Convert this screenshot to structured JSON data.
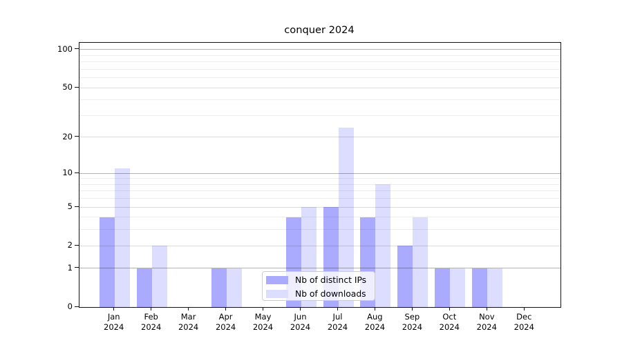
{
  "chart_data": {
    "type": "bar",
    "title": "conquer 2024",
    "categories": [
      "Jan 2024",
      "Feb 2024",
      "Mar 2024",
      "Apr 2024",
      "May 2024",
      "Jun 2024",
      "Jul 2024",
      "Aug 2024",
      "Sep 2024",
      "Oct 2024",
      "Nov 2024",
      "Dec 2024"
    ],
    "series": [
      {
        "name": "Nb of distinct IPs",
        "color": "#aaaaff",
        "values": [
          4,
          1,
          0,
          1,
          0,
          4,
          5,
          4,
          2,
          1,
          1,
          0
        ]
      },
      {
        "name": "Nb of downloads",
        "color": "#ddddff",
        "values": [
          11,
          2,
          0,
          1,
          0,
          5,
          24,
          8,
          4,
          1,
          1,
          0
        ]
      }
    ],
    "y_axis": {
      "scale": "log1p",
      "labeled_ticks": [
        0,
        1,
        2,
        5,
        10,
        20,
        50,
        100
      ],
      "power_ticks": [
        1,
        10,
        100
      ],
      "minor_gridlines": [
        3,
        4,
        6,
        7,
        8,
        9,
        30,
        40,
        60,
        70,
        80,
        90
      ],
      "ylim": [
        0,
        113
      ]
    },
    "xlabel": "",
    "ylabel": "",
    "grid": true,
    "legend": {
      "position": "lower center"
    }
  }
}
